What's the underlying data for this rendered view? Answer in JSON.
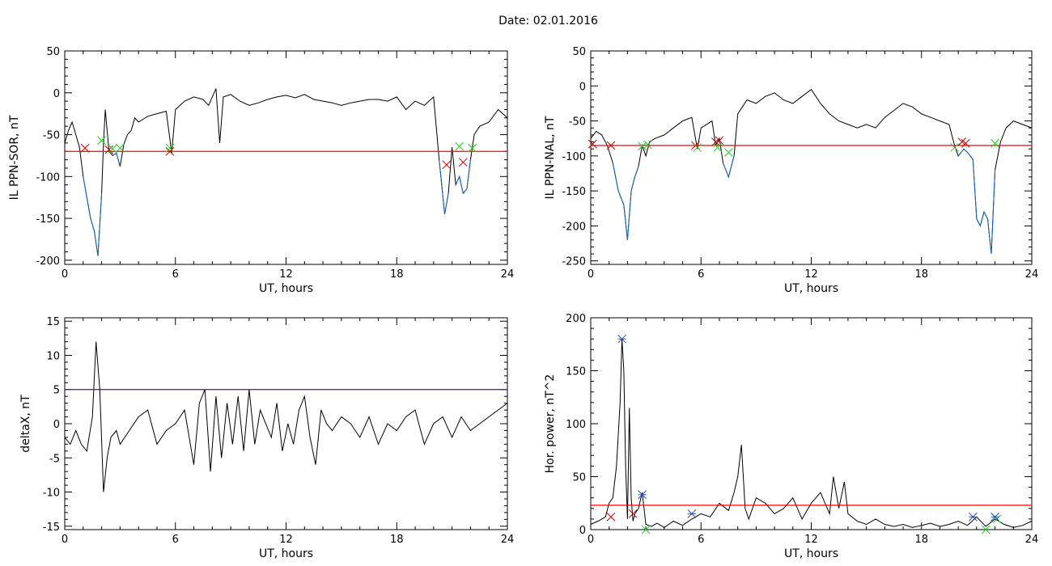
{
  "title": "Date:  02.01.2016",
  "chart_data": [
    {
      "type": "line",
      "ylabel": "IL PPN-SOR, nT",
      "xlabel": "UT, hours",
      "xlim": [
        0,
        24
      ],
      "ylim": [
        -205,
        50
      ],
      "xticks": [
        0,
        6,
        12,
        18,
        24
      ],
      "yticks": [
        -200,
        -150,
        -100,
        -50,
        0,
        50
      ],
      "threshold": -70,
      "threshold_color": "#ff0000",
      "series_color": "#000000",
      "highlight_color": "#1565c0",
      "x": [
        0,
        0.2,
        0.4,
        0.6,
        0.8,
        1.0,
        1.2,
        1.4,
        1.6,
        1.8,
        2.0,
        2.1,
        2.2,
        2.4,
        2.6,
        2.8,
        3.0,
        3.2,
        3.4,
        3.6,
        3.8,
        4.0,
        4.5,
        5.0,
        5.5,
        5.8,
        6.0,
        6.5,
        7.0,
        7.5,
        7.8,
        8.0,
        8.2,
        8.4,
        8.6,
        9.0,
        9.5,
        10.0,
        10.5,
        11.0,
        11.5,
        12.0,
        12.5,
        13.0,
        13.5,
        14.0,
        14.5,
        15.0,
        15.5,
        16.0,
        16.5,
        17.0,
        17.5,
        18.0,
        18.5,
        19.0,
        19.5,
        20.0,
        20.3,
        20.6,
        20.8,
        21.0,
        21.2,
        21.4,
        21.6,
        21.8,
        22.0,
        22.2,
        22.5,
        23.0,
        23.5,
        24.0
      ],
      "y": [
        -60,
        -45,
        -35,
        -50,
        -65,
        -100,
        -125,
        -150,
        -165,
        -195,
        -120,
        -60,
        -20,
        -70,
        -75,
        -72,
        -88,
        -62,
        -50,
        -45,
        -30,
        -35,
        -28,
        -25,
        -22,
        -72,
        -20,
        -10,
        -5,
        -8,
        -15,
        -5,
        5,
        -60,
        -5,
        -2,
        -10,
        -15,
        -12,
        -8,
        -5,
        -3,
        -6,
        -2,
        -8,
        -10,
        -12,
        -15,
        -12,
        -10,
        -8,
        -8,
        -10,
        -5,
        -20,
        -10,
        -15,
        -5,
        -80,
        -145,
        -120,
        -65,
        -110,
        -100,
        -120,
        -115,
        -80,
        -50,
        -40,
        -35,
        -20,
        -30
      ],
      "markers_red": [
        [
          1.1,
          -66
        ],
        [
          2.4,
          -68
        ],
        [
          5.7,
          -70
        ],
        [
          20.7,
          -86
        ],
        [
          21.6,
          -83
        ]
      ],
      "markers_green": [
        [
          2.0,
          -57
        ],
        [
          2.6,
          -67
        ],
        [
          5.7,
          -66
        ],
        [
          21.4,
          -64
        ],
        [
          22.1,
          -66
        ],
        [
          3.0,
          -66
        ]
      ]
    },
    {
      "type": "line",
      "ylabel": "IL PPN-NAL, nT",
      "xlabel": "UT, hours",
      "xlim": [
        0,
        24
      ],
      "ylim": [
        -255,
        50
      ],
      "xticks": [
        0,
        6,
        12,
        18,
        24
      ],
      "yticks": [
        -250,
        -200,
        -150,
        -100,
        -50,
        0,
        50
      ],
      "threshold": -85,
      "threshold_color": "#ff0000",
      "series_color": "#000000",
      "highlight_color": "#1565c0",
      "x": [
        0,
        0.3,
        0.6,
        0.9,
        1.2,
        1.5,
        1.8,
        2.0,
        2.2,
        2.4,
        2.6,
        2.8,
        3.0,
        3.2,
        3.5,
        4.0,
        4.5,
        5.0,
        5.5,
        5.8,
        6.0,
        6.3,
        6.6,
        6.8,
        7.0,
        7.2,
        7.5,
        7.8,
        8.0,
        8.5,
        9.0,
        9.5,
        10.0,
        10.5,
        11.0,
        11.5,
        12.0,
        12.5,
        13.0,
        13.5,
        14.0,
        14.5,
        15.0,
        15.5,
        16.0,
        16.5,
        17.0,
        17.5,
        18.0,
        18.5,
        19.0,
        19.5,
        19.8,
        20.0,
        20.3,
        20.5,
        20.8,
        21.0,
        21.2,
        21.4,
        21.6,
        21.8,
        22.0,
        22.3,
        22.6,
        23.0,
        23.5,
        24.0
      ],
      "y": [
        -75,
        -65,
        -70,
        -85,
        -110,
        -150,
        -170,
        -220,
        -150,
        -130,
        -115,
        -85,
        -100,
        -80,
        -75,
        -70,
        -60,
        -50,
        -45,
        -90,
        -60,
        -55,
        -50,
        -85,
        -75,
        -110,
        -130,
        -100,
        -40,
        -20,
        -25,
        -15,
        -10,
        -20,
        -25,
        -15,
        -5,
        -25,
        -40,
        -50,
        -55,
        -60,
        -55,
        -60,
        -45,
        -35,
        -25,
        -30,
        -40,
        -45,
        -50,
        -55,
        -85,
        -100,
        -90,
        -95,
        -105,
        -190,
        -200,
        -180,
        -190,
        -240,
        -120,
        -80,
        -60,
        -50,
        -55,
        -60
      ],
      "markers_red": [
        [
          0.1,
          -83
        ],
        [
          1.1,
          -85
        ],
        [
          5.7,
          -85
        ],
        [
          6.8,
          -80
        ],
        [
          7.0,
          -78
        ],
        [
          20.2,
          -80
        ],
        [
          20.4,
          -82
        ]
      ],
      "markers_green": [
        [
          2.8,
          -86
        ],
        [
          3.1,
          -84
        ],
        [
          6.9,
          -88
        ],
        [
          7.5,
          -95
        ],
        [
          19.8,
          -88
        ],
        [
          22.0,
          -82
        ],
        [
          5.8,
          -88
        ]
      ]
    },
    {
      "type": "line",
      "ylabel": "deltaX, nT",
      "xlabel": "UT, hours",
      "xlim": [
        0,
        24
      ],
      "ylim": [
        -15.5,
        15.5
      ],
      "xticks": [
        0,
        6,
        12,
        18,
        24
      ],
      "yticks": [
        -15,
        -10,
        -5,
        0,
        5,
        10,
        15
      ],
      "threshold": 5,
      "threshold_color": "#4a1a8a",
      "series_color": "#000000",
      "x": [
        0,
        0.3,
        0.6,
        0.9,
        1.2,
        1.5,
        1.7,
        1.9,
        2.1,
        2.3,
        2.5,
        2.8,
        3.0,
        3.5,
        4.0,
        4.5,
        5.0,
        5.5,
        6.0,
        6.5,
        7.0,
        7.3,
        7.6,
        7.9,
        8.2,
        8.5,
        8.8,
        9.1,
        9.4,
        9.7,
        10.0,
        10.3,
        10.6,
        10.9,
        11.2,
        11.5,
        11.8,
        12.1,
        12.4,
        12.7,
        13.0,
        13.3,
        13.6,
        13.9,
        14.2,
        14.5,
        15.0,
        15.5,
        16.0,
        16.5,
        17.0,
        17.5,
        18.0,
        18.5,
        19.0,
        19.5,
        20.0,
        20.5,
        21.0,
        21.5,
        22.0,
        22.5,
        23.0,
        23.5,
        24.0
      ],
      "y": [
        -2,
        -3,
        -1,
        -3,
        -4,
        1,
        12,
        5,
        -10,
        -5,
        -2,
        -1,
        -3,
        -1,
        1,
        2,
        -3,
        -1,
        0,
        2,
        -6,
        3,
        5,
        -7,
        4,
        -5,
        3,
        -3,
        4,
        -4,
        5,
        -3,
        2,
        0,
        -2,
        3,
        -4,
        0,
        -3,
        2,
        4,
        -2,
        -6,
        2,
        0,
        -1,
        1,
        0,
        -2,
        1,
        -3,
        0,
        -1,
        1,
        2,
        -3,
        0,
        1,
        -2,
        1,
        -1,
        0,
        1,
        2,
        3
      ]
    },
    {
      "type": "line",
      "ylabel": "Hor. power, nT^2",
      "xlabel": "UT, hours",
      "xlim": [
        0,
        24
      ],
      "ylim": [
        0,
        200
      ],
      "xticks": [
        0,
        6,
        12,
        18,
        24
      ],
      "yticks": [
        0,
        50,
        100,
        150,
        200
      ],
      "threshold": 23,
      "threshold_color": "#ff0000",
      "series_color": "#000000",
      "x": [
        0,
        0.4,
        0.8,
        1.0,
        1.2,
        1.4,
        1.6,
        1.7,
        1.8,
        1.9,
        2.0,
        2.1,
        2.2,
        2.3,
        2.4,
        2.6,
        2.8,
        3.0,
        3.3,
        3.6,
        4.0,
        4.5,
        5.0,
        5.5,
        6.0,
        6.5,
        7.0,
        7.5,
        7.8,
        8.0,
        8.2,
        8.4,
        8.6,
        9.0,
        9.5,
        10.0,
        10.5,
        11.0,
        11.5,
        12.0,
        12.5,
        13.0,
        13.2,
        13.5,
        13.8,
        14.0,
        14.5,
        15.0,
        15.5,
        16.0,
        16.5,
        17.0,
        17.5,
        18.0,
        18.5,
        19.0,
        19.5,
        20.0,
        20.5,
        21.0,
        21.5,
        22.0,
        22.5,
        23.0,
        23.5,
        24.0
      ],
      "y": [
        5,
        8,
        12,
        25,
        30,
        60,
        120,
        180,
        150,
        60,
        10,
        115,
        30,
        8,
        15,
        20,
        35,
        5,
        3,
        6,
        2,
        8,
        4,
        10,
        15,
        12,
        25,
        18,
        35,
        50,
        80,
        20,
        10,
        30,
        25,
        15,
        20,
        30,
        10,
        25,
        35,
        15,
        50,
        20,
        45,
        15,
        8,
        5,
        10,
        5,
        3,
        5,
        2,
        4,
        6,
        3,
        5,
        8,
        4,
        12,
        3,
        10,
        5,
        2,
        4,
        8
      ],
      "markers_blue": [
        [
          1.7,
          180
        ],
        [
          2.8,
          33
        ],
        [
          5.5,
          15
        ],
        [
          20.8,
          12
        ],
        [
          22.0,
          12
        ]
      ],
      "markers_red": [
        [
          1.1,
          12
        ],
        [
          2.3,
          15
        ]
      ],
      "markers_green": [
        [
          3.0,
          0
        ],
        [
          21.5,
          0
        ],
        [
          22.1,
          10
        ]
      ]
    }
  ]
}
